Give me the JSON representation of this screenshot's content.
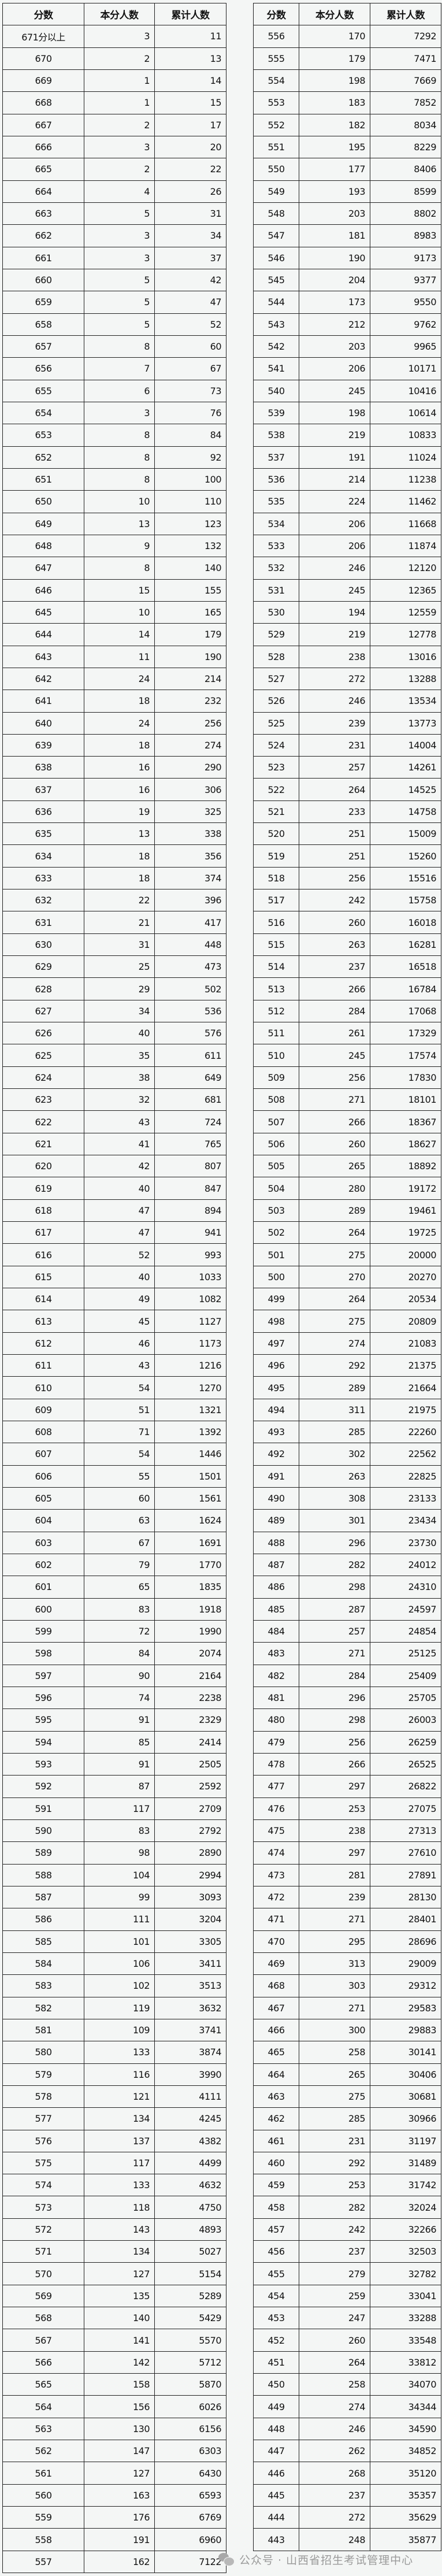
{
  "headers": [
    "分数",
    "本分人数",
    "累计人数"
  ],
  "left": {
    "rows": [
      [
        "671分以上",
        "3",
        "11"
      ],
      [
        "670",
        "2",
        "13"
      ],
      [
        "669",
        "1",
        "14"
      ],
      [
        "668",
        "1",
        "15"
      ],
      [
        "667",
        "2",
        "17"
      ],
      [
        "666",
        "3",
        "20"
      ],
      [
        "665",
        "2",
        "22"
      ],
      [
        "664",
        "4",
        "26"
      ],
      [
        "663",
        "5",
        "31"
      ],
      [
        "662",
        "3",
        "34"
      ],
      [
        "661",
        "3",
        "37"
      ],
      [
        "660",
        "5",
        "42"
      ],
      [
        "659",
        "5",
        "47"
      ],
      [
        "658",
        "5",
        "52"
      ],
      [
        "657",
        "8",
        "60"
      ],
      [
        "656",
        "7",
        "67"
      ],
      [
        "655",
        "6",
        "73"
      ],
      [
        "654",
        "3",
        "76"
      ],
      [
        "653",
        "8",
        "84"
      ],
      [
        "652",
        "8",
        "92"
      ],
      [
        "651",
        "8",
        "100"
      ],
      [
        "650",
        "10",
        "110"
      ],
      [
        "649",
        "13",
        "123"
      ],
      [
        "648",
        "9",
        "132"
      ],
      [
        "647",
        "8",
        "140"
      ],
      [
        "646",
        "15",
        "155"
      ],
      [
        "645",
        "10",
        "165"
      ],
      [
        "644",
        "14",
        "179"
      ],
      [
        "643",
        "11",
        "190"
      ],
      [
        "642",
        "24",
        "214"
      ],
      [
        "641",
        "18",
        "232"
      ],
      [
        "640",
        "24",
        "256"
      ],
      [
        "639",
        "18",
        "274"
      ],
      [
        "638",
        "16",
        "290"
      ],
      [
        "637",
        "16",
        "306"
      ],
      [
        "636",
        "19",
        "325"
      ],
      [
        "635",
        "13",
        "338"
      ],
      [
        "634",
        "18",
        "356"
      ],
      [
        "633",
        "18",
        "374"
      ],
      [
        "632",
        "22",
        "396"
      ],
      [
        "631",
        "21",
        "417"
      ],
      [
        "630",
        "31",
        "448"
      ],
      [
        "629",
        "25",
        "473"
      ],
      [
        "628",
        "29",
        "502"
      ],
      [
        "627",
        "34",
        "536"
      ],
      [
        "626",
        "40",
        "576"
      ],
      [
        "625",
        "35",
        "611"
      ],
      [
        "624",
        "38",
        "649"
      ],
      [
        "623",
        "32",
        "681"
      ],
      [
        "622",
        "43",
        "724"
      ],
      [
        "621",
        "41",
        "765"
      ],
      [
        "620",
        "42",
        "807"
      ],
      [
        "619",
        "40",
        "847"
      ],
      [
        "618",
        "47",
        "894"
      ],
      [
        "617",
        "47",
        "941"
      ],
      [
        "616",
        "52",
        "993"
      ],
      [
        "615",
        "40",
        "1033"
      ],
      [
        "614",
        "49",
        "1082"
      ],
      [
        "613",
        "45",
        "1127"
      ],
      [
        "612",
        "46",
        "1173"
      ],
      [
        "611",
        "43",
        "1216"
      ],
      [
        "610",
        "54",
        "1270"
      ],
      [
        "609",
        "51",
        "1321"
      ],
      [
        "608",
        "71",
        "1392"
      ],
      [
        "607",
        "54",
        "1446"
      ],
      [
        "606",
        "55",
        "1501"
      ],
      [
        "605",
        "60",
        "1561"
      ],
      [
        "604",
        "63",
        "1624"
      ],
      [
        "603",
        "67",
        "1691"
      ],
      [
        "602",
        "79",
        "1770"
      ],
      [
        "601",
        "65",
        "1835"
      ],
      [
        "600",
        "83",
        "1918"
      ],
      [
        "599",
        "72",
        "1990"
      ],
      [
        "598",
        "84",
        "2074"
      ],
      [
        "597",
        "90",
        "2164"
      ],
      [
        "596",
        "74",
        "2238"
      ],
      [
        "595",
        "91",
        "2329"
      ],
      [
        "594",
        "85",
        "2414"
      ],
      [
        "593",
        "91",
        "2505"
      ],
      [
        "592",
        "87",
        "2592"
      ],
      [
        "591",
        "117",
        "2709"
      ],
      [
        "590",
        "83",
        "2792"
      ],
      [
        "589",
        "98",
        "2890"
      ],
      [
        "588",
        "104",
        "2994"
      ],
      [
        "587",
        "99",
        "3093"
      ],
      [
        "586",
        "111",
        "3204"
      ],
      [
        "585",
        "101",
        "3305"
      ],
      [
        "584",
        "106",
        "3411"
      ],
      [
        "583",
        "102",
        "3513"
      ],
      [
        "582",
        "119",
        "3632"
      ],
      [
        "581",
        "109",
        "3741"
      ],
      [
        "580",
        "133",
        "3874"
      ],
      [
        "579",
        "116",
        "3990"
      ],
      [
        "578",
        "121",
        "4111"
      ],
      [
        "577",
        "134",
        "4245"
      ],
      [
        "576",
        "137",
        "4382"
      ],
      [
        "575",
        "117",
        "4499"
      ],
      [
        "574",
        "133",
        "4632"
      ],
      [
        "573",
        "118",
        "4750"
      ],
      [
        "572",
        "143",
        "4893"
      ],
      [
        "571",
        "134",
        "5027"
      ],
      [
        "570",
        "127",
        "5154"
      ],
      [
        "569",
        "135",
        "5289"
      ],
      [
        "568",
        "140",
        "5429"
      ],
      [
        "567",
        "141",
        "5570"
      ],
      [
        "566",
        "142",
        "5712"
      ],
      [
        "565",
        "158",
        "5870"
      ],
      [
        "564",
        "156",
        "6026"
      ],
      [
        "563",
        "130",
        "6156"
      ],
      [
        "562",
        "147",
        "6303"
      ],
      [
        "561",
        "127",
        "6430"
      ],
      [
        "560",
        "163",
        "6593"
      ],
      [
        "559",
        "176",
        "6769"
      ],
      [
        "558",
        "191",
        "6960"
      ],
      [
        "557",
        "162",
        "7122"
      ]
    ]
  },
  "right": {
    "rows": [
      [
        "556",
        "170",
        "7292"
      ],
      [
        "555",
        "179",
        "7471"
      ],
      [
        "554",
        "198",
        "7669"
      ],
      [
        "553",
        "183",
        "7852"
      ],
      [
        "552",
        "182",
        "8034"
      ],
      [
        "551",
        "195",
        "8229"
      ],
      [
        "550",
        "177",
        "8406"
      ],
      [
        "549",
        "193",
        "8599"
      ],
      [
        "548",
        "203",
        "8802"
      ],
      [
        "547",
        "181",
        "8983"
      ],
      [
        "546",
        "190",
        "9173"
      ],
      [
        "545",
        "204",
        "9377"
      ],
      [
        "544",
        "173",
        "9550"
      ],
      [
        "543",
        "212",
        "9762"
      ],
      [
        "542",
        "203",
        "9965"
      ],
      [
        "541",
        "206",
        "10171"
      ],
      [
        "540",
        "245",
        "10416"
      ],
      [
        "539",
        "198",
        "10614"
      ],
      [
        "538",
        "219",
        "10833"
      ],
      [
        "537",
        "191",
        "11024"
      ],
      [
        "536",
        "214",
        "11238"
      ],
      [
        "535",
        "224",
        "11462"
      ],
      [
        "534",
        "206",
        "11668"
      ],
      [
        "533",
        "206",
        "11874"
      ],
      [
        "532",
        "246",
        "12120"
      ],
      [
        "531",
        "245",
        "12365"
      ],
      [
        "530",
        "194",
        "12559"
      ],
      [
        "529",
        "219",
        "12778"
      ],
      [
        "528",
        "238",
        "13016"
      ],
      [
        "527",
        "272",
        "13288"
      ],
      [
        "526",
        "246",
        "13534"
      ],
      [
        "525",
        "239",
        "13773"
      ],
      [
        "524",
        "231",
        "14004"
      ],
      [
        "523",
        "257",
        "14261"
      ],
      [
        "522",
        "264",
        "14525"
      ],
      [
        "521",
        "233",
        "14758"
      ],
      [
        "520",
        "251",
        "15009"
      ],
      [
        "519",
        "251",
        "15260"
      ],
      [
        "518",
        "256",
        "15516"
      ],
      [
        "517",
        "242",
        "15758"
      ],
      [
        "516",
        "260",
        "16018"
      ],
      [
        "515",
        "263",
        "16281"
      ],
      [
        "514",
        "237",
        "16518"
      ],
      [
        "513",
        "266",
        "16784"
      ],
      [
        "512",
        "284",
        "17068"
      ],
      [
        "511",
        "261",
        "17329"
      ],
      [
        "510",
        "245",
        "17574"
      ],
      [
        "509",
        "256",
        "17830"
      ],
      [
        "508",
        "271",
        "18101"
      ],
      [
        "507",
        "266",
        "18367"
      ],
      [
        "506",
        "260",
        "18627"
      ],
      [
        "505",
        "265",
        "18892"
      ],
      [
        "504",
        "280",
        "19172"
      ],
      [
        "503",
        "289",
        "19461"
      ],
      [
        "502",
        "264",
        "19725"
      ],
      [
        "501",
        "275",
        "20000"
      ],
      [
        "500",
        "270",
        "20270"
      ],
      [
        "499",
        "264",
        "20534"
      ],
      [
        "498",
        "275",
        "20809"
      ],
      [
        "497",
        "274",
        "21083"
      ],
      [
        "496",
        "292",
        "21375"
      ],
      [
        "495",
        "289",
        "21664"
      ],
      [
        "494",
        "311",
        "21975"
      ],
      [
        "493",
        "285",
        "22260"
      ],
      [
        "492",
        "302",
        "22562"
      ],
      [
        "491",
        "263",
        "22825"
      ],
      [
        "490",
        "308",
        "23133"
      ],
      [
        "489",
        "301",
        "23434"
      ],
      [
        "488",
        "296",
        "23730"
      ],
      [
        "487",
        "282",
        "24012"
      ],
      [
        "486",
        "298",
        "24310"
      ],
      [
        "485",
        "287",
        "24597"
      ],
      [
        "484",
        "257",
        "24854"
      ],
      [
        "483",
        "271",
        "25125"
      ],
      [
        "482",
        "284",
        "25409"
      ],
      [
        "481",
        "296",
        "25705"
      ],
      [
        "480",
        "298",
        "26003"
      ],
      [
        "479",
        "256",
        "26259"
      ],
      [
        "478",
        "266",
        "26525"
      ],
      [
        "477",
        "297",
        "26822"
      ],
      [
        "476",
        "253",
        "27075"
      ],
      [
        "475",
        "238",
        "27313"
      ],
      [
        "474",
        "297",
        "27610"
      ],
      [
        "473",
        "281",
        "27891"
      ],
      [
        "472",
        "239",
        "28130"
      ],
      [
        "471",
        "271",
        "28401"
      ],
      [
        "470",
        "295",
        "28696"
      ],
      [
        "469",
        "313",
        "29009"
      ],
      [
        "468",
        "303",
        "29312"
      ],
      [
        "467",
        "271",
        "29583"
      ],
      [
        "466",
        "300",
        "29883"
      ],
      [
        "465",
        "258",
        "30141"
      ],
      [
        "464",
        "265",
        "30406"
      ],
      [
        "463",
        "275",
        "30681"
      ],
      [
        "462",
        "285",
        "30966"
      ],
      [
        "461",
        "231",
        "31197"
      ],
      [
        "460",
        "292",
        "31489"
      ],
      [
        "459",
        "253",
        "31742"
      ],
      [
        "458",
        "282",
        "32024"
      ],
      [
        "457",
        "242",
        "32266"
      ],
      [
        "456",
        "237",
        "32503"
      ],
      [
        "455",
        "279",
        "32782"
      ],
      [
        "454",
        "259",
        "33041"
      ],
      [
        "453",
        "247",
        "33288"
      ],
      [
        "452",
        "260",
        "33548"
      ],
      [
        "451",
        "264",
        "33812"
      ],
      [
        "450",
        "258",
        "34070"
      ],
      [
        "449",
        "274",
        "34344"
      ],
      [
        "448",
        "246",
        "34590"
      ],
      [
        "447",
        "262",
        "34852"
      ],
      [
        "446",
        "268",
        "35120"
      ],
      [
        "445",
        "237",
        "35357"
      ],
      [
        "444",
        "272",
        "35629"
      ],
      [
        "443",
        "248",
        "35877"
      ]
    ]
  },
  "watermark": {
    "text": "公众号 · 山西省招生考试管理中心",
    "icon": "wechat-icon"
  }
}
